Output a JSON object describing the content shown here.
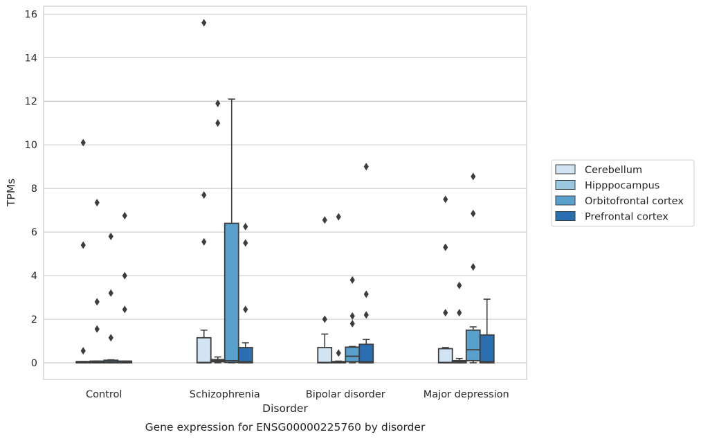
{
  "chart_data": {
    "type": "box",
    "xlabel": "Disorder",
    "ylabel": "TPMs",
    "caption": "Gene expression for ENSG00000225760 by disorder",
    "ylim": [
      -0.75,
      16.4
    ],
    "yticks": [
      0,
      2,
      4,
      6,
      8,
      10,
      12,
      14,
      16
    ],
    "grid": "horizontal",
    "legend_position": "right",
    "categories": [
      "Control",
      "Schizophrenia",
      "Bipolar disorder",
      "Major depression"
    ],
    "series": [
      {
        "name": "Cerebellum",
        "color": "#d2e3f3",
        "boxes": [
          {
            "q1": 0,
            "median": 0.02,
            "q3": 0.06,
            "whisker_low": 0,
            "whisker_high": 0.06,
            "outliers": [
              10.1,
              5.4,
              0.55
            ]
          },
          {
            "q1": 0,
            "median": 0.02,
            "q3": 1.15,
            "whisker_low": 0,
            "whisker_high": 1.5,
            "outliers": [
              15.6,
              7.7,
              5.55
            ]
          },
          {
            "q1": 0,
            "median": 0.02,
            "q3": 0.7,
            "whisker_low": 0,
            "whisker_high": 1.32,
            "outliers": [
              6.55,
              2.0
            ]
          },
          {
            "q1": 0,
            "median": 0.02,
            "q3": 0.65,
            "whisker_low": 0,
            "whisker_high": 0.7,
            "outliers": [
              7.5,
              5.3,
              2.3
            ]
          }
        ]
      },
      {
        "name": "Hipppocampus",
        "color": "#9ac8e0",
        "boxes": [
          {
            "q1": 0,
            "median": 0.03,
            "q3": 0.08,
            "whisker_low": 0,
            "whisker_high": 0.08,
            "outliers": [
              7.35,
              2.8,
              1.55
            ]
          },
          {
            "q1": 0.05,
            "median": 0.1,
            "q3": 0.15,
            "whisker_low": 0,
            "whisker_high": 0.27,
            "outliers": [
              11.9,
              11.0
            ]
          },
          {
            "q1": 0,
            "median": 0.02,
            "q3": 0.06,
            "whisker_low": 0,
            "whisker_high": 0.08,
            "outliers": [
              6.7,
              0.45
            ]
          },
          {
            "q1": 0,
            "median": 0.05,
            "q3": 0.1,
            "whisker_low": 0,
            "whisker_high": 0.2,
            "outliers": [
              3.55,
              2.3
            ]
          }
        ]
      },
      {
        "name": "Orbitofrontal cortex",
        "color": "#5aa0cd",
        "boxes": [
          {
            "q1": 0,
            "median": 0.05,
            "q3": 0.12,
            "whisker_low": 0,
            "whisker_high": 0.14,
            "outliers": [
              5.8,
              3.2,
              1.15
            ]
          },
          {
            "q1": 0.02,
            "median": 0.1,
            "q3": 6.4,
            "whisker_low": 0,
            "whisker_high": 12.1,
            "outliers": []
          },
          {
            "q1": 0.05,
            "median": 0.3,
            "q3": 0.72,
            "whisker_low": 0,
            "whisker_high": 0.75,
            "outliers": [
              3.8,
              2.15,
              1.8
            ]
          },
          {
            "q1": 0.1,
            "median": 0.6,
            "q3": 1.5,
            "whisker_low": 0,
            "whisker_high": 1.65,
            "outliers": [
              8.55,
              6.85,
              4.4
            ]
          }
        ]
      },
      {
        "name": "Prefrontal cortex",
        "color": "#2c6fb0",
        "boxes": [
          {
            "q1": 0,
            "median": 0.03,
            "q3": 0.08,
            "whisker_low": 0,
            "whisker_high": 0.08,
            "outliers": [
              6.75,
              4.0,
              2.45
            ]
          },
          {
            "q1": 0,
            "median": 0.05,
            "q3": 0.7,
            "whisker_low": 0,
            "whisker_high": 0.92,
            "outliers": [
              6.25,
              5.5,
              2.45
            ]
          },
          {
            "q1": 0,
            "median": 0.05,
            "q3": 0.85,
            "whisker_low": 0,
            "whisker_high": 1.07,
            "outliers": [
              9.0,
              3.15,
              2.2
            ]
          },
          {
            "q1": 0,
            "median": 0.05,
            "q3": 1.28,
            "whisker_low": 0,
            "whisker_high": 2.92,
            "outliers": []
          }
        ]
      }
    ]
  }
}
